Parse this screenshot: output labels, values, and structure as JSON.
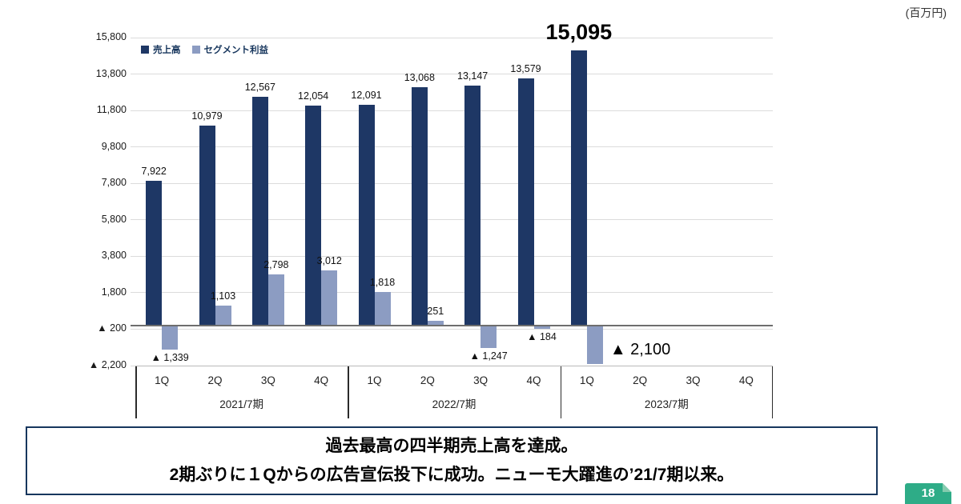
{
  "unit_label": "(百万円)",
  "chart_data": {
    "type": "bar",
    "unit": "百万円",
    "categories": [
      "1Q",
      "2Q",
      "3Q",
      "4Q",
      "1Q",
      "2Q",
      "3Q",
      "4Q",
      "1Q",
      "2Q",
      "3Q",
      "4Q"
    ],
    "groups": [
      {
        "label": "2021/7期",
        "start": 0,
        "span": 4
      },
      {
        "label": "2022/7期",
        "start": 4,
        "span": 4
      },
      {
        "label": "2023/7期",
        "start": 8,
        "span": 4
      }
    ],
    "series": [
      {
        "name": "売上高",
        "color": "#1e3765",
        "values": [
          7922,
          10979,
          12567,
          12054,
          12091,
          13068,
          13147,
          13579,
          15095,
          null,
          null,
          null
        ]
      },
      {
        "name": "セグメント利益",
        "color": "#8c9cc2",
        "values": [
          -1339,
          1103,
          2798,
          3012,
          1818,
          251,
          -1247,
          -184,
          -2100,
          null,
          null,
          null
        ]
      }
    ],
    "y_ticks": [
      15800,
      13800,
      11800,
      9800,
      7800,
      5800,
      3800,
      1800,
      -200,
      -2200
    ],
    "ylim": [
      -2200,
      15800
    ],
    "negative_prefix": "▲ ",
    "grid": true,
    "legend_position": "top-left",
    "highlight_revenue_index": 8,
    "highlight_profit_index": 8
  },
  "message_box": {
    "line1": "過去最高の四半期売上高を達成。",
    "line2": "2期ぶりに１Qからの広告宣伝投下に成功。ニューモ大躍進の’21/7期以来。"
  },
  "page_number": "18",
  "colors": {
    "sales_bar": "#1e3765",
    "profit_bar": "#8c9cc2",
    "box_border": "#17365d",
    "badge_green": "#2eac87"
  }
}
